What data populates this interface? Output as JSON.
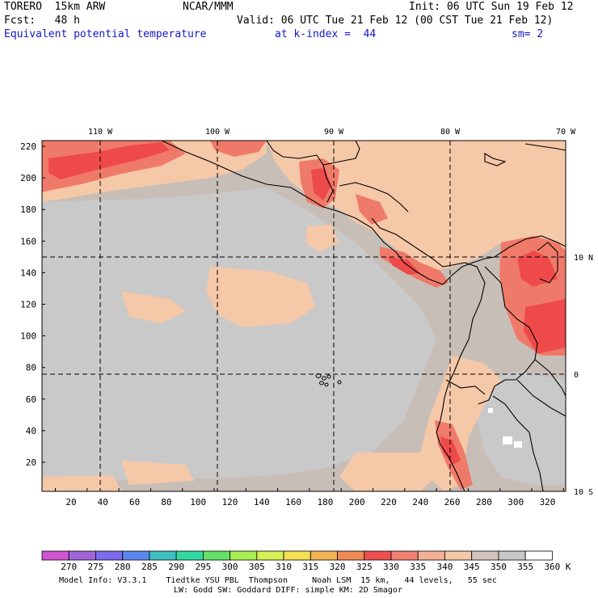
{
  "header": {
    "model": "TORERO  15km ARW",
    "org": "NCAR/MMM",
    "init": "Init: 06 UTC Sun 19 Feb 12",
    "fcst": "Fcst:   48 h",
    "valid": "Valid: 06 UTC Tue 21 Feb 12 (00 CST Tue 21 Feb 12)",
    "field": "Equivalent potential temperature",
    "level": "at k-index =  44",
    "smoothing": "sm= 2"
  },
  "map": {
    "top_lon_labels": [
      "110 W",
      "100 W",
      "90 W",
      "80 W",
      "70 W"
    ],
    "right_lat_labels": [
      "10 N",
      "0",
      "10 S"
    ],
    "x_ticks": [
      "20",
      "40",
      "60",
      "80",
      "100",
      "120",
      "140",
      "160",
      "180",
      "200",
      "220",
      "240",
      "260",
      "280",
      "300",
      "320"
    ],
    "y_ticks": [
      "220",
      "200",
      "180",
      "160",
      "140",
      "120",
      "100",
      "80",
      "60",
      "40",
      "20"
    ],
    "colors": {
      "background_field": "#c8beb8",
      "low_theta": "#c9c9c9",
      "mid_theta": "#f5c8a8",
      "high_theta": "#f07a6a",
      "max_theta": "#ee4a4a",
      "coast": "#000000"
    }
  },
  "colorbar": {
    "labels": [
      "270",
      "275",
      "280",
      "285",
      "290",
      "295",
      "300",
      "305",
      "310",
      "315",
      "320",
      "325",
      "330",
      "335",
      "340",
      "345",
      "350",
      "355",
      "360"
    ],
    "unit": "K",
    "colors": [
      "#d155d1",
      "#a066d8",
      "#7b6cee",
      "#5b86ee",
      "#3ec0c0",
      "#33d8a0",
      "#66e066",
      "#a8ee55",
      "#d8f055",
      "#f2e055",
      "#f2b455",
      "#f08a55",
      "#ee5050",
      "#f08070",
      "#f5b098",
      "#f5c8a8",
      "#d0c4bc",
      "#c8c8c8",
      "#ffffff"
    ]
  },
  "footer": {
    "line1": "Model Info: V3.3.1    Tiedtke YSU PBL  Thompson     Noah LSM  15 km,   44 levels,   55 sec",
    "line2": "LW: Godd SW: Goddard DIFF: simple KM: 2D Smagor"
  }
}
